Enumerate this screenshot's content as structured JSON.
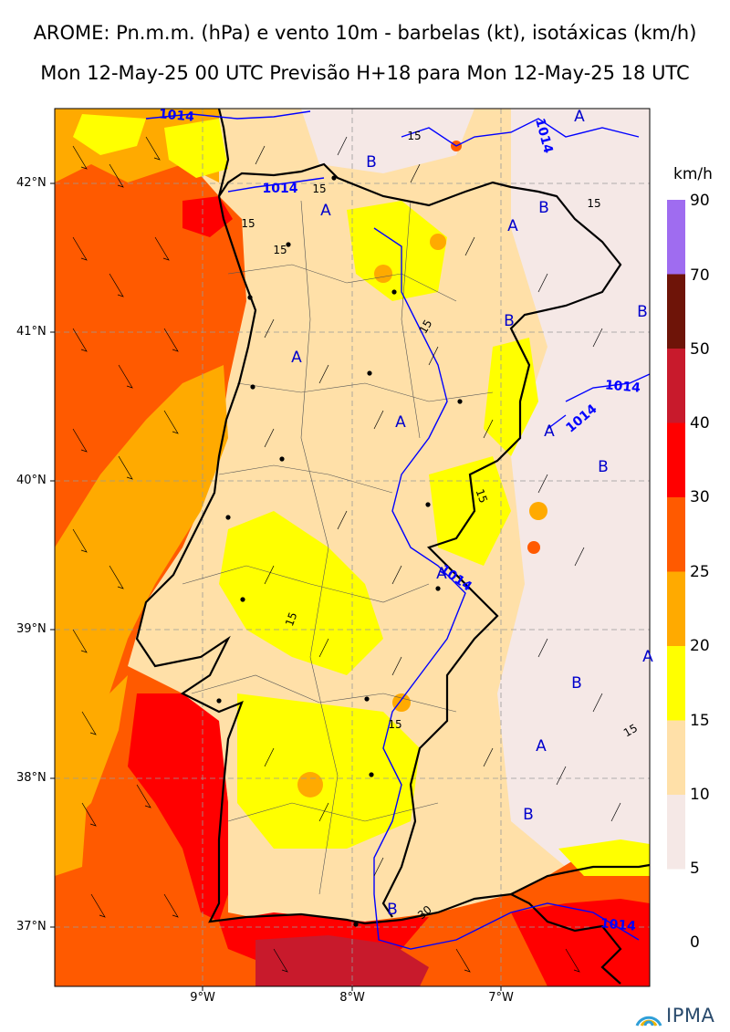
{
  "title_line1": "AROME: Pn.m.m. (hPa) e vento 10m - barbelas (kt), isotáxicas (km/h)",
  "title_line2": "Mon 12-May-25 00 UTC Previsão H+18 para Mon 12-May-25 18 UTC",
  "lat_labels": [
    "42°N",
    "41°N",
    "40°N",
    "39°N",
    "38°N",
    "37°N"
  ],
  "lon_labels": [
    "9°W",
    "8°W",
    "7°W"
  ],
  "colorbar": {
    "unit": "km/h",
    "ticks": [
      "90",
      "70",
      "50",
      "40",
      "30",
      "25",
      "20",
      "15",
      "10",
      "5",
      "0"
    ],
    "colors": [
      "#9f6cf0",
      "#6e1408",
      "#c81a2c",
      "#ff0000",
      "#ff5a00",
      "#ffaa00",
      "#ffff00",
      "#ffe0a8",
      "#f5e8e6"
    ]
  },
  "isobars": {
    "labels": [
      "1014",
      "1014",
      "1014",
      "1014",
      "1014",
      "1014",
      "1014"
    ],
    "color": "#0000ff"
  },
  "isotachs": {
    "labels": [
      "15",
      "15",
      "15",
      "15",
      "15",
      "15",
      "15",
      "15",
      "15",
      "15",
      "30"
    ]
  },
  "pressure_centers": [
    "A",
    "B",
    "A",
    "A",
    "B",
    "B",
    "A",
    "A",
    "A",
    "B",
    "A",
    "B",
    "A",
    "A",
    "B",
    "B",
    "B"
  ],
  "logo_text": "IPMA"
}
